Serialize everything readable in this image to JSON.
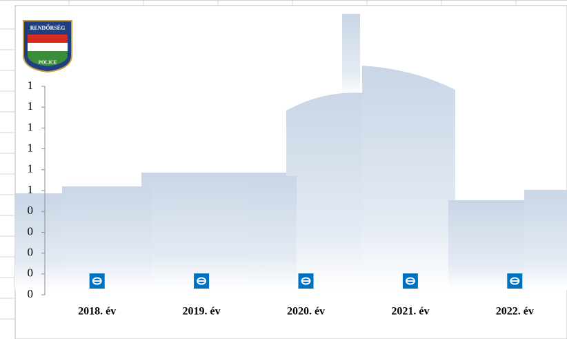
{
  "chart_data": {
    "type": "line",
    "categories": [
      "2018. év",
      "2019. év",
      "2020. év",
      "2021. év",
      "2022. év"
    ],
    "values": [
      0,
      0,
      0,
      0,
      0
    ],
    "color": "#0070c0",
    "ylim": [
      0,
      1
    ],
    "yticks": [
      0,
      {
        "value": 0.1,
        "label": "0"
      },
      {
        "value": 0.2,
        "label": "0"
      },
      {
        "value": 0.3,
        "label": "0"
      },
      {
        "value": 0.4,
        "label": "0"
      },
      {
        "value": 0.5,
        "label": "1"
      },
      {
        "value": 0.6,
        "label": "1"
      },
      {
        "value": 0.7,
        "label": "1"
      },
      {
        "value": 0.8,
        "label": "1"
      },
      {
        "value": 0.9,
        "label": "1"
      },
      1
    ],
    "logo": {
      "top": "RENDŐRSÉG",
      "bottom": "POLICE"
    }
  }
}
